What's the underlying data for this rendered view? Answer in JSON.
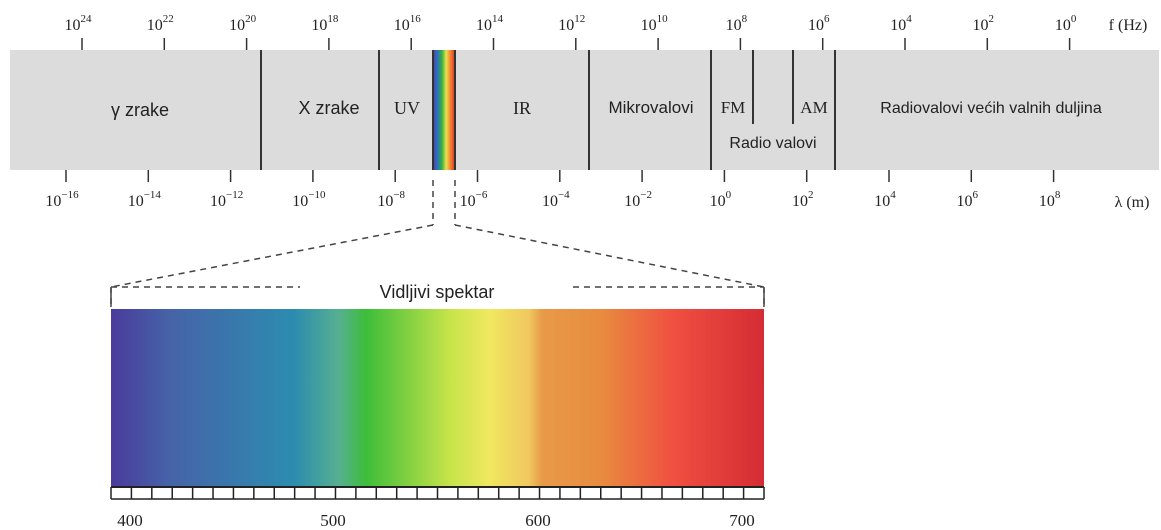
{
  "frequency_axis": {
    "unit_label": "f (Hz)",
    "base": "10",
    "exponents": [
      "24",
      "22",
      "20",
      "18",
      "16",
      "14",
      "12",
      "10",
      "8",
      "6",
      "4",
      "2",
      "0"
    ]
  },
  "wavelength_axis": {
    "unit_label": "λ (m)",
    "base": "10",
    "exponents": [
      "−16",
      "−14",
      "−12",
      "−10",
      "−8",
      "−6",
      "−4",
      "−2",
      "0",
      "2",
      "4",
      "6",
      "8"
    ]
  },
  "bands": {
    "gamma": "γ zrake",
    "xray": "X zrake",
    "uv": "UV",
    "ir": "IR",
    "microwave": "Mikrovalovi",
    "fm": "FM",
    "am": "AM",
    "radio": "Radio valovi",
    "long_radio": "Radiovalovi većih valnih duljina"
  },
  "visible": {
    "title": "Vidljivi spektar",
    "ticks": [
      "400",
      "500",
      "600",
      "700"
    ],
    "colors": {
      "violet": "#4a3b9c",
      "blue": "#2c8cb0",
      "green": "#3dbd3a",
      "yellow": "#f0e860",
      "orange": "#e88c40",
      "red": "#f05040",
      "deep_red": "#d42c34"
    }
  },
  "colors": {
    "band_fill": "#dcdcdc",
    "divider": "#333333",
    "text": "#222222"
  }
}
